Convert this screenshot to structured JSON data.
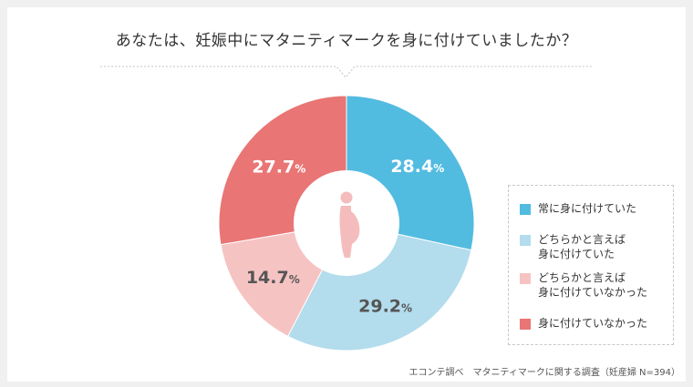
{
  "title": "あなたは、妊娠中にマタニティマークを身に付けていましたか？",
  "chart_data": {
    "type": "pie",
    "title": "あなたは、妊娠中にマタニティマークを身に付けていましたか？",
    "unit": "%",
    "slices": [
      {
        "label": "常に身に付けていた",
        "value": 28.4,
        "value_text": "28.4",
        "color": "#52bbe0",
        "label_color": "#ffffff"
      },
      {
        "label": "どちらかと言えば\n身に付けていた",
        "value": 29.2,
        "value_text": "29.2",
        "color": "#b3dcec",
        "label_color": "#555555"
      },
      {
        "label": "どちらかと言えば\n身に付けていなかった",
        "value": 14.7,
        "value_text": "14.7",
        "color": "#f6c3c3",
        "label_color": "#555555"
      },
      {
        "label": "身に付けていなかった",
        "value": 27.7,
        "value_text": "27.7",
        "color": "#e97575",
        "label_color": "#ffffff"
      }
    ],
    "legend_position": "right"
  },
  "center_icon": "pregnant-woman-icon",
  "footnote": "エコンテ調べ　マタニティマークに関する調査（妊産婦 N=394）"
}
